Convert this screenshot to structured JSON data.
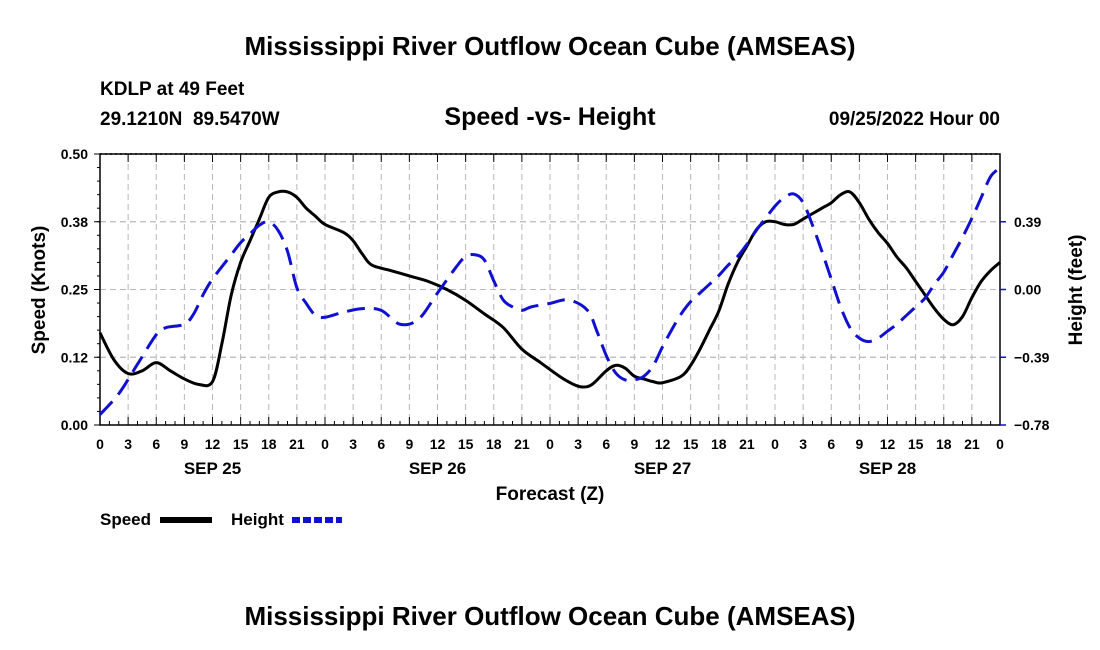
{
  "header": {
    "title": "Mississippi River Outflow Ocean Cube (AMSEAS)",
    "station": "KDLP at 49 Feet",
    "coords": "29.1210N  89.5470W",
    "subtitle": "Speed -vs- Height",
    "run": "09/25/2022 Hour 00"
  },
  "footer": {
    "title": "Mississippi River Outflow Ocean Cube (AMSEAS)"
  },
  "colors": {
    "speed": "#000000",
    "height": "#1010d0",
    "grid": "#b8b8b8"
  },
  "chart_data": {
    "type": "line",
    "title": "Speed -vs- Height",
    "xlabel": "Forecast (Z)",
    "ylabel": "Speed (Knots)",
    "y2label": "Height (feet)",
    "xlim": [
      0,
      96
    ],
    "ylim": [
      0,
      0.5
    ],
    "y2lim": [
      -0.78,
      0.78
    ],
    "grid": true,
    "x_tick_labels": [
      "0",
      "3",
      "6",
      "9",
      "12",
      "15",
      "18",
      "21",
      "0",
      "3",
      "6",
      "9",
      "12",
      "15",
      "18",
      "21",
      "0",
      "3",
      "6",
      "9",
      "12",
      "15",
      "18",
      "21",
      "0",
      "3",
      "6",
      "9",
      "12",
      "15",
      "18",
      "21",
      "0"
    ],
    "date_labels": [
      {
        "label": "SEP 25",
        "hour": 12
      },
      {
        "label": "SEP 26",
        "hour": 36
      },
      {
        "label": "SEP 27",
        "hour": 60
      },
      {
        "label": "SEP 28",
        "hour": 84
      }
    ],
    "y_ticks": [
      0,
      0.125,
      0.25,
      0.375,
      0.5
    ],
    "y_tick_labels": [
      "0.00",
      "0.12",
      "0.25",
      "0.38",
      "0.50"
    ],
    "y2_ticks": [
      -0.78,
      -0.39,
      0,
      0.39
    ],
    "y2_tick_labels": [
      "−0.78",
      "−0.39",
      "0.00",
      "0.39"
    ],
    "legend_position": "bottom-left",
    "series": [
      {
        "name": "Speed",
        "axis": "left",
        "style": "solid",
        "points": [
          [
            0,
            0.17
          ],
          [
            1.5,
            0.12
          ],
          [
            3,
            0.095
          ],
          [
            4.5,
            0.1
          ],
          [
            6,
            0.115
          ],
          [
            7.5,
            0.1
          ],
          [
            9,
            0.085
          ],
          [
            10.5,
            0.075
          ],
          [
            12,
            0.08
          ],
          [
            13,
            0.15
          ],
          [
            14,
            0.24
          ],
          [
            15,
            0.3
          ],
          [
            16,
            0.34
          ],
          [
            17,
            0.38
          ],
          [
            18,
            0.42
          ],
          [
            19,
            0.43
          ],
          [
            20,
            0.43
          ],
          [
            21,
            0.42
          ],
          [
            22,
            0.4
          ],
          [
            23,
            0.385
          ],
          [
            24,
            0.37
          ],
          [
            26,
            0.355
          ],
          [
            27,
            0.34
          ],
          [
            28,
            0.315
          ],
          [
            29,
            0.295
          ],
          [
            31,
            0.285
          ],
          [
            33,
            0.275
          ],
          [
            35,
            0.265
          ],
          [
            37,
            0.25
          ],
          [
            39,
            0.23
          ],
          [
            41,
            0.205
          ],
          [
            43,
            0.18
          ],
          [
            45,
            0.14
          ],
          [
            47,
            0.115
          ],
          [
            49,
            0.09
          ],
          [
            50.5,
            0.075
          ],
          [
            51.5,
            0.07
          ],
          [
            52.5,
            0.075
          ],
          [
            54,
            0.1
          ],
          [
            55,
            0.11
          ],
          [
            56,
            0.105
          ],
          [
            57,
            0.09
          ],
          [
            58,
            0.085
          ],
          [
            59,
            0.08
          ],
          [
            60,
            0.078
          ],
          [
            62,
            0.09
          ],
          [
            63,
            0.11
          ],
          [
            64,
            0.14
          ],
          [
            65,
            0.175
          ],
          [
            66,
            0.21
          ],
          [
            67,
            0.26
          ],
          [
            68,
            0.3
          ],
          [
            69,
            0.33
          ],
          [
            70,
            0.36
          ],
          [
            71,
            0.375
          ],
          [
            72,
            0.375
          ],
          [
            73,
            0.37
          ],
          [
            74,
            0.37
          ],
          [
            75,
            0.38
          ],
          [
            76,
            0.39
          ],
          [
            77,
            0.4
          ],
          [
            78,
            0.41
          ],
          [
            79,
            0.425
          ],
          [
            80,
            0.43
          ],
          [
            81,
            0.41
          ],
          [
            82,
            0.38
          ],
          [
            83,
            0.355
          ],
          [
            84,
            0.335
          ],
          [
            85,
            0.31
          ],
          [
            86,
            0.29
          ],
          [
            87,
            0.265
          ],
          [
            88,
            0.24
          ],
          [
            89,
            0.215
          ],
          [
            90,
            0.195
          ],
          [
            91,
            0.185
          ],
          [
            92,
            0.2
          ],
          [
            93,
            0.235
          ],
          [
            94,
            0.265
          ],
          [
            95,
            0.285
          ],
          [
            96,
            0.3
          ]
        ]
      },
      {
        "name": "Height",
        "axis": "right",
        "style": "dashed",
        "points": [
          [
            0,
            -0.72
          ],
          [
            2,
            -0.6
          ],
          [
            4,
            -0.43
          ],
          [
            6,
            -0.26
          ],
          [
            7,
            -0.22
          ],
          [
            9,
            -0.2
          ],
          [
            10,
            -0.14
          ],
          [
            11,
            -0.03
          ],
          [
            12,
            0.06
          ],
          [
            14,
            0.2
          ],
          [
            15,
            0.27
          ],
          [
            16,
            0.32
          ],
          [
            17,
            0.37
          ],
          [
            18,
            0.39
          ],
          [
            19,
            0.34
          ],
          [
            20,
            0.22
          ],
          [
            21,
            0.01
          ],
          [
            22,
            -0.08
          ],
          [
            23,
            -0.15
          ],
          [
            24,
            -0.16
          ],
          [
            26,
            -0.13
          ],
          [
            28,
            -0.11
          ],
          [
            30,
            -0.12
          ],
          [
            32,
            -0.2
          ],
          [
            34,
            -0.17
          ],
          [
            36,
            -0.02
          ],
          [
            38,
            0.13
          ],
          [
            39,
            0.19
          ],
          [
            40,
            0.2
          ],
          [
            41,
            0.17
          ],
          [
            42,
            0.05
          ],
          [
            43,
            -0.06
          ],
          [
            44,
            -0.1
          ],
          [
            45,
            -0.12
          ],
          [
            46,
            -0.1
          ],
          [
            48,
            -0.08
          ],
          [
            50,
            -0.06
          ],
          [
            52,
            -0.12
          ],
          [
            53,
            -0.24
          ],
          [
            54,
            -0.38
          ],
          [
            55,
            -0.48
          ],
          [
            56,
            -0.52
          ],
          [
            57,
            -0.52
          ],
          [
            58,
            -0.5
          ],
          [
            59,
            -0.44
          ],
          [
            60,
            -0.33
          ],
          [
            61,
            -0.23
          ],
          [
            62,
            -0.14
          ],
          [
            63,
            -0.07
          ],
          [
            64,
            -0.02
          ],
          [
            65,
            0.03
          ],
          [
            66,
            0.08
          ],
          [
            67,
            0.14
          ],
          [
            68,
            0.19
          ],
          [
            69,
            0.26
          ],
          [
            70,
            0.34
          ],
          [
            71,
            0.41
          ],
          [
            72,
            0.48
          ],
          [
            73,
            0.53
          ],
          [
            74,
            0.55
          ],
          [
            75,
            0.5
          ],
          [
            76,
            0.37
          ],
          [
            77,
            0.22
          ],
          [
            78,
            0.06
          ],
          [
            79,
            -0.1
          ],
          [
            80,
            -0.22
          ],
          [
            81,
            -0.28
          ],
          [
            82,
            -0.3
          ],
          [
            83,
            -0.28
          ],
          [
            84,
            -0.24
          ],
          [
            85,
            -0.2
          ],
          [
            86,
            -0.15
          ],
          [
            87,
            -0.1
          ],
          [
            88,
            -0.05
          ],
          [
            89,
            0.03
          ],
          [
            90,
            0.1
          ],
          [
            91,
            0.2
          ],
          [
            92,
            0.3
          ],
          [
            93,
            0.41
          ],
          [
            94,
            0.53
          ],
          [
            95,
            0.65
          ],
          [
            96,
            0.7
          ]
        ]
      }
    ]
  }
}
